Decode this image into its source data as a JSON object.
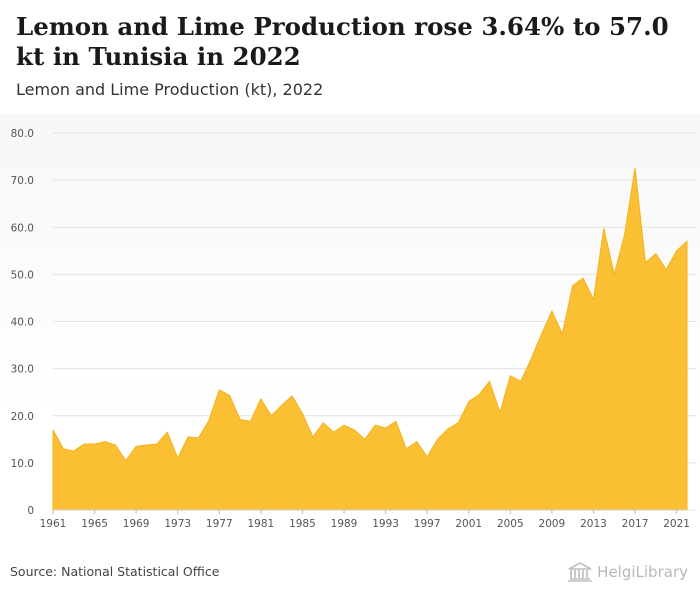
{
  "header": {
    "title": "Lemon and Lime Production rose 3.64% to 57.0 kt in Tunisia in 2022",
    "subtitle": "Lemon and Lime Production (kt), 2022"
  },
  "footer": {
    "source": "Source: National Statistical Office",
    "logo_text": "HelgiLibrary"
  },
  "colors": {
    "area": "#fbbf34",
    "area_stroke": "#f4b21c",
    "grid": "#e3e3e3",
    "axis_text": "#555555"
  },
  "chart_data": {
    "type": "area",
    "title": "Lemon and Lime Production (kt), 2022",
    "xlabel": "",
    "ylabel": "",
    "ylim": [
      0,
      80
    ],
    "y_ticks": [
      "0",
      "10.0",
      "20.0",
      "30.0",
      "40.0",
      "50.0",
      "60.0",
      "70.0",
      "80.0"
    ],
    "x_ticks": [
      "1961",
      "1965",
      "1969",
      "1973",
      "1977",
      "1981",
      "1985",
      "1989",
      "1993",
      "1997",
      "2001",
      "2005",
      "2009",
      "2013",
      "2017",
      "2021"
    ],
    "grid": true,
    "x": [
      1961,
      1962,
      1963,
      1964,
      1965,
      1966,
      1967,
      1968,
      1969,
      1970,
      1971,
      1972,
      1973,
      1974,
      1975,
      1976,
      1977,
      1978,
      1979,
      1980,
      1981,
      1982,
      1983,
      1984,
      1985,
      1986,
      1987,
      1988,
      1989,
      1990,
      1991,
      1992,
      1993,
      1994,
      1995,
      1996,
      1997,
      1998,
      1999,
      2000,
      2001,
      2002,
      2003,
      2004,
      2005,
      2006,
      2007,
      2008,
      2009,
      2010,
      2011,
      2012,
      2013,
      2014,
      2015,
      2016,
      2017,
      2018,
      2019,
      2020,
      2021,
      2022
    ],
    "values": [
      17.0,
      13.0,
      12.5,
      14.0,
      14.0,
      14.5,
      13.8,
      10.5,
      13.5,
      13.8,
      14.0,
      16.5,
      11.0,
      15.5,
      15.3,
      19.0,
      25.5,
      24.3,
      19.2,
      18.8,
      23.6,
      20.0,
      22.2,
      24.2,
      20.5,
      15.5,
      18.5,
      16.5,
      18.0,
      17.0,
      15.0,
      18.0,
      17.4,
      18.8,
      13.0,
      14.5,
      11.3,
      15.0,
      17.2,
      18.5,
      23.0,
      24.5,
      27.3,
      20.7,
      28.5,
      27.3,
      32.0,
      37.3,
      42.2,
      37.4,
      47.6,
      49.2,
      44.7,
      59.8,
      50.0,
      58.5,
      72.6,
      52.5,
      54.4,
      51.0,
      55.0,
      57.0
    ]
  }
}
